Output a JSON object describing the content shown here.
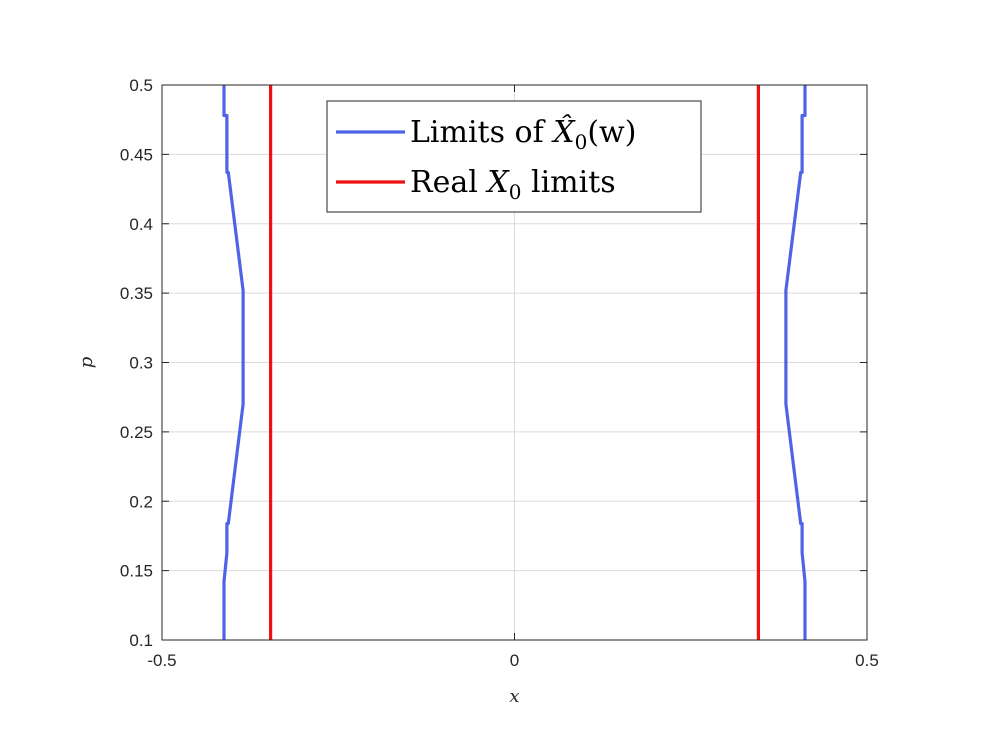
{
  "chart_data": {
    "type": "line",
    "xlabel": "x",
    "ylabel": "p",
    "xlim": [
      -0.5,
      0.5
    ],
    "ylim": [
      0.1,
      0.5
    ],
    "xticks": [
      -0.5,
      0,
      0.5
    ],
    "xtick_labels": [
      "-0.5",
      "0",
      "0.5"
    ],
    "yticks": [
      0.1,
      0.15,
      0.2,
      0.25,
      0.3,
      0.35,
      0.4,
      0.45,
      0.5
    ],
    "ytick_labels": [
      "0.1",
      "0.15",
      "0.2",
      "0.25",
      "0.3",
      "0.35",
      "0.4",
      "0.45",
      "0.5"
    ],
    "grid": true,
    "legend_position": "top-center",
    "series": [
      {
        "name": "Limits of X̂₀(w)",
        "legend_main": "Limits of ",
        "legend_math": "X̂",
        "legend_sub": "0",
        "legend_tail": "(w)",
        "color": "#4f63e6",
        "lines": [
          {
            "x": [
              -0.412,
              -0.412,
              -0.408,
              -0.408,
              -0.406,
              -0.385,
              -0.385,
              -0.406,
              -0.408,
              -0.408,
              -0.412,
              -0.412
            ],
            "y": [
              0.1,
              0.142,
              0.163,
              0.184,
              0.184,
              0.27,
              0.352,
              0.437,
              0.437,
              0.478,
              0.478,
              0.5
            ]
          },
          {
            "x": [
              0.412,
              0.412,
              0.408,
              0.408,
              0.406,
              0.385,
              0.385,
              0.406,
              0.408,
              0.408,
              0.412,
              0.412
            ],
            "y": [
              0.1,
              0.142,
              0.163,
              0.184,
              0.184,
              0.27,
              0.352,
              0.437,
              0.437,
              0.478,
              0.478,
              0.5
            ]
          }
        ]
      },
      {
        "name": "Real X₀ limits",
        "legend_main": "Real ",
        "legend_math": "X",
        "legend_sub": "0",
        "legend_tail": " limits",
        "color": "#ee1111",
        "lines": [
          {
            "x": [
              -0.346,
              -0.346
            ],
            "y": [
              0.1,
              0.5
            ]
          },
          {
            "x": [
              0.346,
              0.346
            ],
            "y": [
              0.1,
              0.5
            ]
          }
        ]
      }
    ]
  }
}
